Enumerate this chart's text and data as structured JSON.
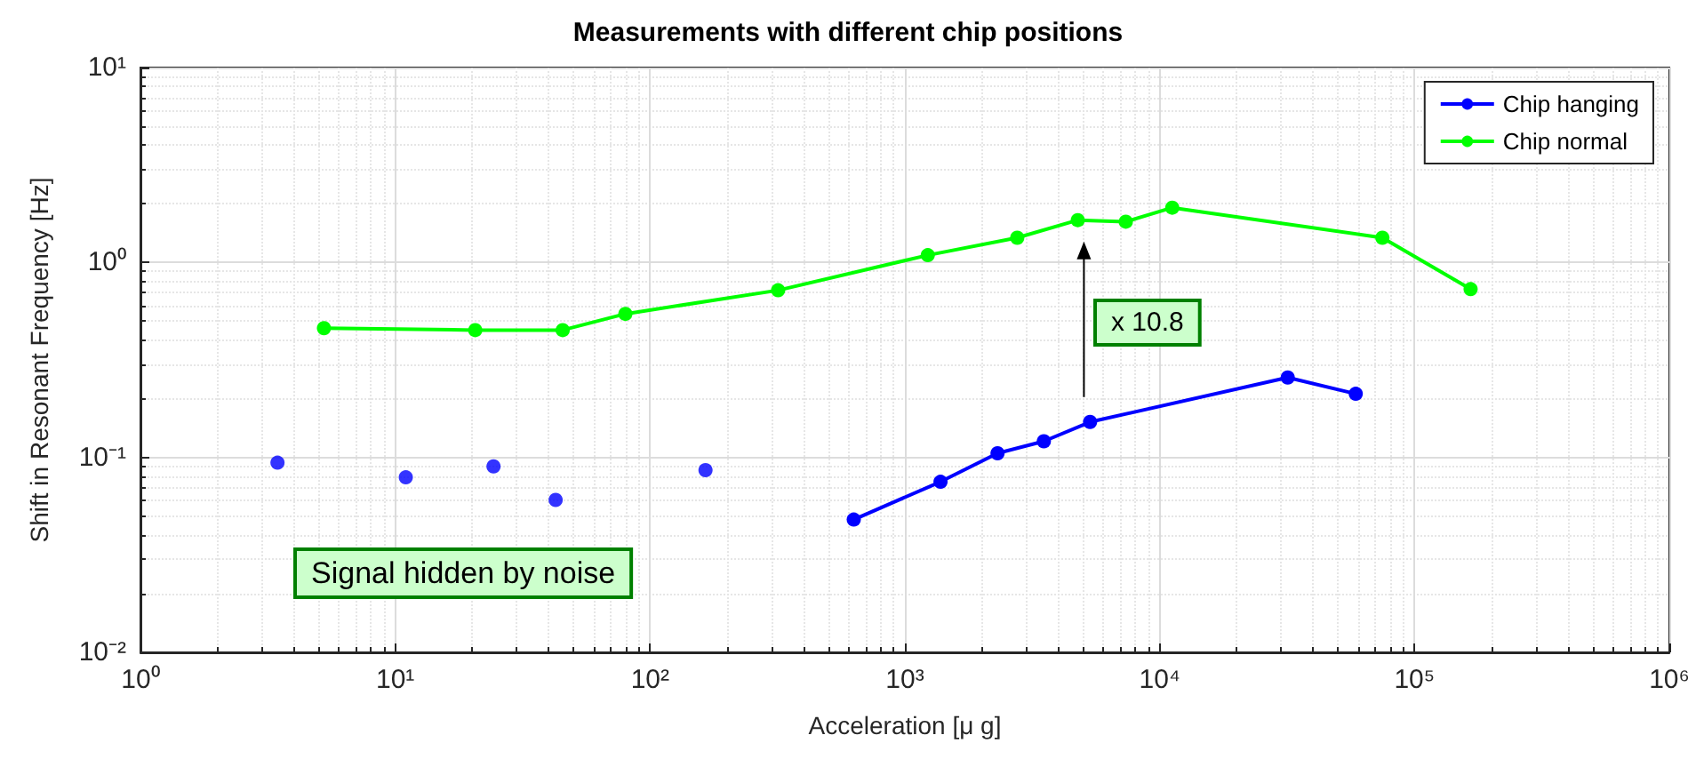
{
  "chart_data": {
    "type": "line",
    "title": "Measurements with different chip positions",
    "xlabel": "Acceleration [μ g]",
    "ylabel": "Shift in Resonant Frequency [Hz]",
    "log": "xy",
    "grid": true,
    "legend": "top right",
    "marker": "circle",
    "line_style": "solid",
    "xlim": [
      1,
      1000000
    ],
    "ylim": [
      0.01,
      10
    ],
    "xticks": [
      {
        "value": 1,
        "label": "10⁰"
      },
      {
        "value": 10,
        "label": "10¹"
      },
      {
        "value": 100,
        "label": "10²"
      },
      {
        "value": 1000,
        "label": "10³"
      },
      {
        "value": 10000,
        "label": "10⁴"
      },
      {
        "value": 100000,
        "label": "10⁵"
      },
      {
        "value": 1000000,
        "label": "10⁶"
      }
    ],
    "yticks": [
      {
        "value": 0.01,
        "label": "10⁻²"
      },
      {
        "value": 0.1,
        "label": "10⁻¹"
      },
      {
        "value": 1,
        "label": "10⁰"
      },
      {
        "value": 10,
        "label": "10¹"
      }
    ],
    "series": [
      {
        "name": "Chip hanging",
        "color": "#0000ff",
        "x": [
          630,
          1380,
          2310,
          3510,
          5330,
          31800,
          58800
        ],
        "values": [
          0.048,
          0.075,
          0.105,
          0.121,
          0.152,
          0.257,
          0.212
        ]
      },
      {
        "name": "Chip normal",
        "color": "#00ff00",
        "x": [
          5.25,
          20.6,
          45.4,
          80,
          318,
          1230,
          2760,
          4770,
          7360,
          11200,
          74800,
          166000
        ],
        "values": [
          0.46,
          0.45,
          0.45,
          0.545,
          0.72,
          1.09,
          1.34,
          1.65,
          1.62,
          1.91,
          1.34,
          0.73
        ]
      },
      {
        "type": "scatter",
        "color": "#0000ff",
        "x": [
          3.45,
          11,
          24.3,
          42.6,
          165
        ],
        "values": [
          0.094,
          0.079,
          0.09,
          0.0605,
          0.086
        ]
      }
    ],
    "annotations": [
      "x 10.8",
      "Signal hidden by noise"
    ]
  }
}
